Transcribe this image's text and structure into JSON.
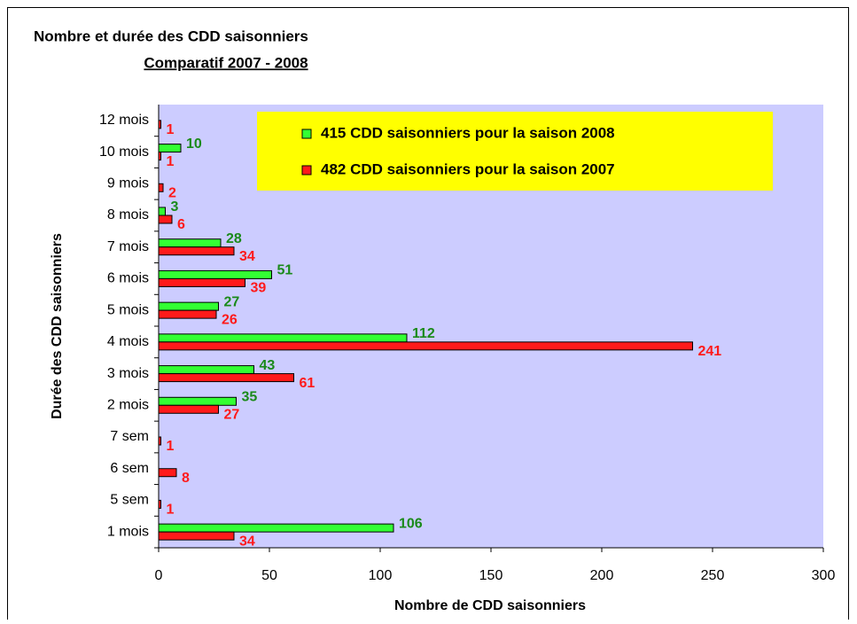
{
  "chart_data": {
    "type": "barh",
    "title": "Nombre et durée des CDD saisonniers",
    "subtitle": "Comparatif 2007 -  2008",
    "xlabel": "Nombre de CDD saisonniers",
    "ylabel": "Durée des CDD saisonniers",
    "categories": [
      "1 mois",
      "5 sem",
      "6 sem",
      "7 sem",
      "2 mois",
      "3 mois",
      "4 mois",
      "5 mois",
      "6 mois",
      "7 mois",
      "8 mois",
      "9 mois",
      "10 mois",
      "12 mois"
    ],
    "series": [
      {
        "name": "415 CDD saisonniers pour la saison 2008",
        "color": "#33ff33",
        "label_color": "#1a8a1a",
        "values": [
          106,
          null,
          null,
          null,
          35,
          43,
          112,
          27,
          51,
          28,
          3,
          null,
          10,
          null
        ]
      },
      {
        "name": "482 CDD saisonniers pour la saison 2007",
        "color": "#ff1a1a",
        "label_color": "#ff1a1a",
        "values": [
          34,
          1,
          8,
          1,
          27,
          61,
          241,
          26,
          39,
          34,
          6,
          2,
          1,
          1
        ]
      }
    ],
    "xlim": [
      0,
      300
    ],
    "xticks": [
      0,
      50,
      100,
      150,
      200,
      250,
      300
    ],
    "plot_background": "#ccccff",
    "legend_background": "#ffff00",
    "legend_position": "upper right"
  }
}
